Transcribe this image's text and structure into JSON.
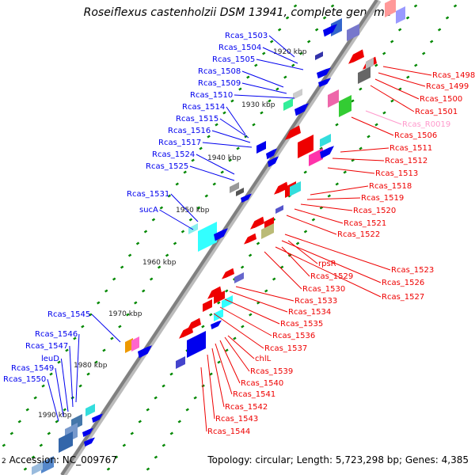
{
  "title": "Roseiflexus castenholzii DSM 13941, complete genome",
  "footer": {
    "prefix": "2",
    "accession": "Accession: NC_009767",
    "summary": "Topology: circular; Length: 5,723,298 bp; Genes: 4,385"
  },
  "colors": {
    "plus_strand": "#0000ee",
    "minus_strand": "#ee0000",
    "rna": "#ff99cc",
    "backbone": "#808080",
    "tick": "#008800"
  },
  "kbp_ticks": [
    "1920 kbp",
    "1930 kbp",
    "1940 kbp",
    "1950 kbp",
    "1960 kbp",
    "1970 kbp",
    "1980 kbp",
    "1990 kbp"
  ],
  "left_labels": [
    {
      "text": "Rcas_1503"
    },
    {
      "text": "Rcas_1504"
    },
    {
      "text": "Rcas_1505"
    },
    {
      "text": "Rcas_1508"
    },
    {
      "text": "Rcas_1509"
    },
    {
      "text": "Rcas_1510"
    },
    {
      "text": "Rcas_1514"
    },
    {
      "text": "Rcas_1515"
    },
    {
      "text": "Rcas_1516"
    },
    {
      "text": "Rcas_1517"
    },
    {
      "text": "Rcas_1524"
    },
    {
      "text": "Rcas_1525"
    },
    {
      "text": "Rcas_1531"
    },
    {
      "text": "sucA"
    },
    {
      "text": "Rcas_1545"
    },
    {
      "text": "Rcas_1546"
    },
    {
      "text": "Rcas_1547"
    },
    {
      "text": "leuD"
    },
    {
      "text": "Rcas_1549"
    },
    {
      "text": "Rcas_1550"
    }
  ],
  "right_labels": [
    {
      "text": "Rcas_1498"
    },
    {
      "text": "Rcas_1499"
    },
    {
      "text": "Rcas_1500"
    },
    {
      "text": "Rcas_1501"
    },
    {
      "text": "Rcas_R0019"
    },
    {
      "text": "Rcas_1506"
    },
    {
      "text": "Rcas_1511"
    },
    {
      "text": "Rcas_1512"
    },
    {
      "text": "Rcas_1513"
    },
    {
      "text": "Rcas_1518"
    },
    {
      "text": "Rcas_1519"
    },
    {
      "text": "Rcas_1520"
    },
    {
      "text": "Rcas_1521"
    },
    {
      "text": "Rcas_1522"
    },
    {
      "text": "Rcas_1523"
    },
    {
      "text": "rpsR"
    },
    {
      "text": "Rcas_1526"
    },
    {
      "text": "Rcas_1529"
    },
    {
      "text": "Rcas_1527"
    },
    {
      "text": "Rcas_1530"
    },
    {
      "text": "Rcas_1533"
    },
    {
      "text": "Rcas_1534"
    },
    {
      "text": "Rcas_1535"
    },
    {
      "text": "Rcas_1536"
    },
    {
      "text": "Rcas_1537"
    },
    {
      "text": "chlL"
    },
    {
      "text": "Rcas_1539"
    },
    {
      "text": "Rcas_1540"
    },
    {
      "text": "Rcas_1541"
    },
    {
      "text": "Rcas_1542"
    },
    {
      "text": "Rcas_1543"
    },
    {
      "text": "Rcas_1544"
    }
  ]
}
